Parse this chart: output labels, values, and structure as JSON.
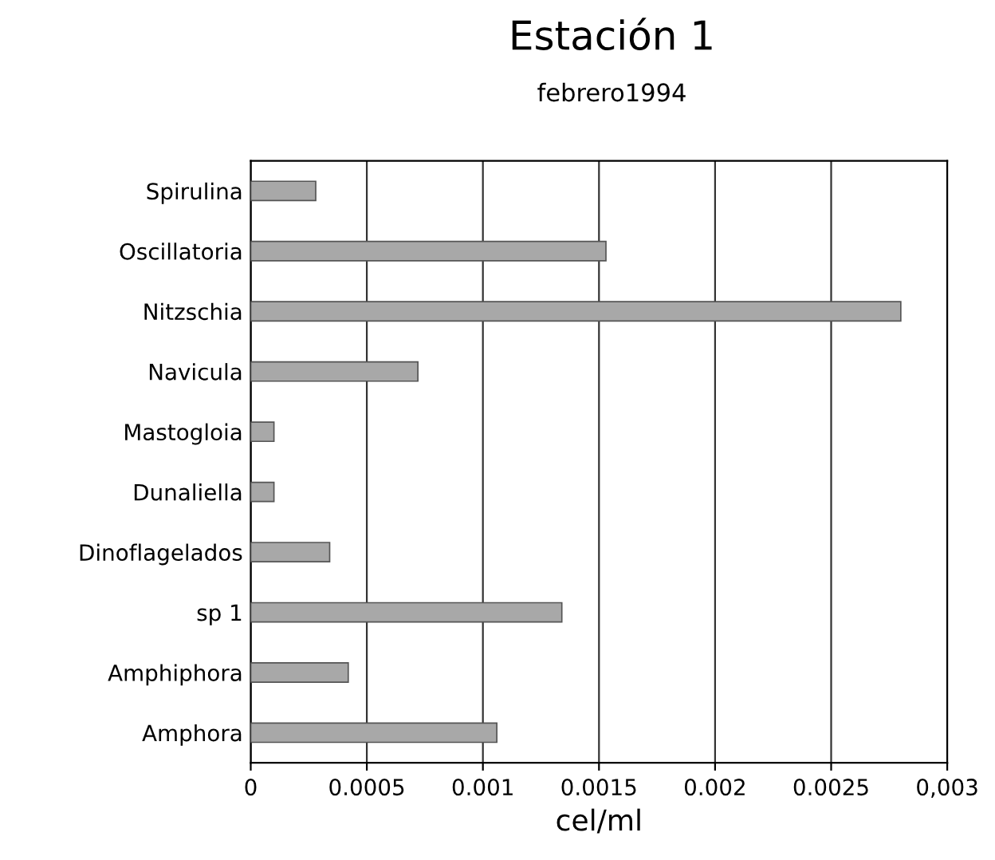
{
  "chart_data": {
    "type": "bar",
    "orientation": "horizontal",
    "title": "Estación 1",
    "subtitle": "febrero1994",
    "xlabel": "cel/ml",
    "categories": [
      "Spirulina",
      "Oscillatoria",
      "Nitzschia",
      "Navicula",
      "Mastogloia",
      "Dunaliella",
      "Dinoflagelados",
      "sp 1",
      "Amphiphora",
      "Amphora"
    ],
    "values": [
      0.00028,
      0.00153,
      0.0028,
      0.00072,
      0.0001,
      0.0001,
      0.00034,
      0.00134,
      0.00042,
      0.00106
    ],
    "color": "#a8a8a8",
    "xlim": [
      0,
      0.003
    ],
    "xticks": [
      0,
      0.0005,
      0.001,
      0.0015,
      0.002,
      0.0025,
      {
        "value": 0.003,
        "label": "0,003"
      }
    ],
    "grid": "x",
    "legend": false
  }
}
